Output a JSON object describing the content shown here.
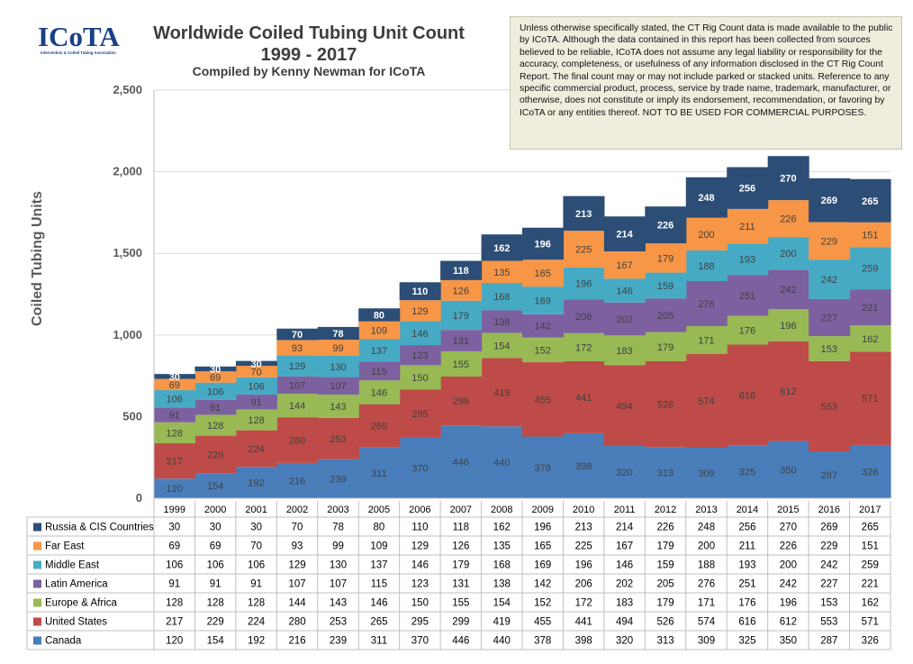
{
  "logo": {
    "text": "ICoTA",
    "tagline": "Intervention & Coiled Tubing Association"
  },
  "header": {
    "title_line1": "Worldwide Coiled Tubing Unit Count",
    "title_line2": "1999 - 2017",
    "subtitle": "Compiled by Kenny Newman for ICoTA"
  },
  "disclaimer": "Unless otherwise specifically stated, the CT Rig Count data is made available to the public by ICoTA.  Although the data contained in this report has been collected from sources believed to be reliable, ICoTA does not assume any legal liability or responsibility for the accuracy, completeness, or usefulness of any information disclosed in the CT Rig Count Report.  The final count may or may not include parked or stacked units. Reference to any specific commercial product, process, service by trade name, trademark, manufacturer, or otherwise, does not constitute or imply its endorsement, recommendation, or favoring by ICoTA or any entities thereof.  NOT TO BE USED FOR COMMERCIAL PURPOSES.",
  "colors": {
    "Canada": "#4a7ebb",
    "United States": "#be4b48",
    "Europe & Africa": "#98b954",
    "Latin America": "#7d60a0",
    "Middle East": "#46aac5",
    "Far East": "#f79646",
    "Russia & CIS Countries": "#2c4d75"
  },
  "chart_data": {
    "type": "area",
    "stacked": true,
    "title": "Worldwide Coiled Tubing Unit Count 1999 - 2017",
    "xlabel": "",
    "ylabel": "Coiled Tubing Units",
    "ylim": [
      0,
      2500
    ],
    "yticks": [
      "0",
      "500",
      "1,000",
      "1,500",
      "2,000",
      "2,500"
    ],
    "grid": true,
    "legend": "data-table",
    "categories": [
      "1999",
      "2000",
      "2001",
      "2002",
      "2003",
      "2005",
      "2006",
      "2007",
      "2008",
      "2009",
      "2010",
      "2011",
      "2012",
      "2013",
      "2014",
      "2015",
      "2016",
      "2017"
    ],
    "series": [
      {
        "name": "Canada",
        "values": [
          120,
          154,
          192,
          216,
          239,
          311,
          370,
          446,
          440,
          378,
          398,
          320,
          313,
          309,
          325,
          350,
          287,
          326
        ]
      },
      {
        "name": "United States",
        "values": [
          217,
          229,
          224,
          280,
          253,
          265,
          295,
          299,
          419,
          455,
          441,
          494,
          526,
          574,
          616,
          612,
          553,
          571
        ]
      },
      {
        "name": "Europe & Africa",
        "values": [
          128,
          128,
          128,
          144,
          143,
          146,
          150,
          155,
          154,
          152,
          172,
          183,
          179,
          171,
          176,
          196,
          153,
          162
        ]
      },
      {
        "name": "Latin America",
        "values": [
          91,
          91,
          91,
          107,
          107,
          115,
          123,
          131,
          138,
          142,
          206,
          202,
          205,
          276,
          251,
          242,
          227,
          221
        ]
      },
      {
        "name": "Middle East",
        "values": [
          106,
          106,
          106,
          129,
          130,
          137,
          146,
          179,
          168,
          169,
          196,
          146,
          159,
          188,
          193,
          200,
          242,
          259
        ]
      },
      {
        "name": "Far East",
        "values": [
          69,
          69,
          70,
          93,
          99,
          109,
          129,
          126,
          135,
          165,
          225,
          167,
          179,
          200,
          211,
          226,
          229,
          151
        ]
      },
      {
        "name": "Russia & CIS Countries",
        "values": [
          30,
          30,
          30,
          70,
          78,
          80,
          110,
          118,
          162,
          196,
          213,
          214,
          226,
          248,
          256,
          270,
          269,
          265
        ]
      }
    ]
  }
}
